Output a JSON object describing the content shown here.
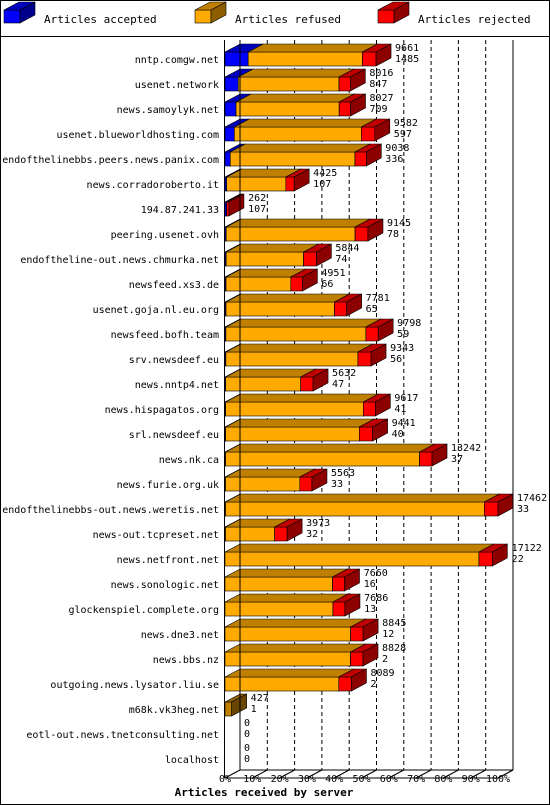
{
  "chart_data": {
    "type": "bar",
    "orientation": "horizontal",
    "stacked": true,
    "legend_position": "top",
    "series": [
      {
        "name": "Articles accepted",
        "color": "#0000ff"
      },
      {
        "name": "Articles refused",
        "color": "#ffaa00"
      },
      {
        "name": "Articles rejected",
        "color": "#ff0000"
      }
    ],
    "xlabel": "Articles received by server",
    "xlim": [
      0,
      100
    ],
    "x_ticks": [
      "0%",
      "10%",
      "20%",
      "30%",
      "40%",
      "50%",
      "60%",
      "70%",
      "80%",
      "90%",
      "100%"
    ],
    "grid": "vertical dashed",
    "max_total": 17462,
    "rows": [
      {
        "server": "nntp.comgw.net",
        "total": 9661,
        "accepted": 1485,
        "label_total": "9661",
        "label_accepted": "1485"
      },
      {
        "server": "usenet.network",
        "total": 8016,
        "accepted": 847,
        "label_total": "8016",
        "label_accepted": "847"
      },
      {
        "server": "news.samoylyk.net",
        "total": 8027,
        "accepted": 709,
        "label_total": "8027",
        "label_accepted": "709"
      },
      {
        "server": "usenet.blueworldhosting.com",
        "total": 9582,
        "accepted": 597,
        "label_total": "9582",
        "label_accepted": "597"
      },
      {
        "server": "endofthelinebbs.peers.news.panix.com",
        "total": 9038,
        "accepted": 336,
        "label_total": "9038",
        "label_accepted": "336"
      },
      {
        "server": "news.corradoroberto.it",
        "total": 4425,
        "accepted": 107,
        "label_total": "4425",
        "label_accepted": "107"
      },
      {
        "server": "194.87.241.33",
        "total": 262,
        "accepted": 107,
        "label_total": "262",
        "label_accepted": "107"
      },
      {
        "server": "peering.usenet.ovh",
        "total": 9145,
        "accepted": 78,
        "label_total": "9145",
        "label_accepted": "78"
      },
      {
        "server": "endoftheline-out.news.chmurka.net",
        "total": 5844,
        "accepted": 74,
        "label_total": "5844",
        "label_accepted": "74"
      },
      {
        "server": "newsfeed.xs3.de",
        "total": 4951,
        "accepted": 66,
        "label_total": "4951",
        "label_accepted": "66"
      },
      {
        "server": "usenet.goja.nl.eu.org",
        "total": 7781,
        "accepted": 65,
        "label_total": "7781",
        "label_accepted": "65"
      },
      {
        "server": "newsfeed.bofh.team",
        "total": 9798,
        "accepted": 59,
        "label_total": "9798",
        "label_accepted": "59"
      },
      {
        "server": "srv.newsdeef.eu",
        "total": 9343,
        "accepted": 56,
        "label_total": "9343",
        "label_accepted": "56"
      },
      {
        "server": "news.nntp4.net",
        "total": 5632,
        "accepted": 47,
        "label_total": "5632",
        "label_accepted": "47"
      },
      {
        "server": "news.hispagatos.org",
        "total": 9617,
        "accepted": 41,
        "label_total": "9617",
        "label_accepted": "41"
      },
      {
        "server": "srl.newsdeef.eu",
        "total": 9441,
        "accepted": 40,
        "label_total": "9441",
        "label_accepted": "40"
      },
      {
        "server": "news.nk.ca",
        "total": 13242,
        "accepted": 37,
        "label_total": "13242",
        "label_accepted": "37"
      },
      {
        "server": "news.furie.org.uk",
        "total": 5563,
        "accepted": 33,
        "label_total": "5563",
        "label_accepted": "33"
      },
      {
        "server": "endofthelinebbs-out.news.weretis.net",
        "total": 17462,
        "accepted": 33,
        "label_total": "17462",
        "label_accepted": "33"
      },
      {
        "server": "news-out.tcpreset.net",
        "total": 3973,
        "accepted": 32,
        "label_total": "3973",
        "label_accepted": "32"
      },
      {
        "server": "news.netfront.net",
        "total": 17122,
        "accepted": 22,
        "label_total": "17122",
        "label_accepted": "22"
      },
      {
        "server": "news.sonologic.net",
        "total": 7660,
        "accepted": 16,
        "label_total": "7660",
        "label_accepted": "16"
      },
      {
        "server": "glockenspiel.complete.org",
        "total": 7686,
        "accepted": 13,
        "label_total": "7686",
        "label_accepted": "13"
      },
      {
        "server": "news.dne3.net",
        "total": 8845,
        "accepted": 12,
        "label_total": "8845",
        "label_accepted": "12"
      },
      {
        "server": "news.bbs.nz",
        "total": 8828,
        "accepted": 2,
        "label_total": "8828",
        "label_accepted": "2"
      },
      {
        "server": "outgoing.news.lysator.liu.se",
        "total": 8089,
        "accepted": 2,
        "label_total": "8089",
        "label_accepted": "2"
      },
      {
        "server": "m68k.vk3heg.net",
        "total": 427,
        "accepted": 1,
        "label_total": "427",
        "label_accepted": "1"
      },
      {
        "server": "eotl-out.news.tnetconsulting.net",
        "total": 0,
        "accepted": 0,
        "label_total": "0",
        "label_accepted": "0"
      },
      {
        "server": "localhost",
        "total": 0,
        "accepted": 0,
        "label_total": "0",
        "label_accepted": "0"
      }
    ],
    "rejected_fraction": [
      0.09,
      0.09,
      0.09,
      0.09,
      0.08,
      0.12,
      0.55,
      0.09,
      0.14,
      0.15,
      0.1,
      0.08,
      0.09,
      0.14,
      0.08,
      0.09,
      0.06,
      0.14,
      0.05,
      0.2,
      0.05,
      0.1,
      0.1,
      0.09,
      0.09,
      0.1,
      0.0,
      0.0,
      0.0
    ],
    "rejected_visible": [
      true,
      true,
      true,
      true,
      true,
      true,
      true,
      true,
      true,
      true,
      true,
      true,
      true,
      true,
      true,
      true,
      true,
      true,
      true,
      true,
      true,
      true,
      true,
      true,
      true,
      true,
      false,
      false,
      false
    ],
    "dark_refused_bar": [
      false,
      false,
      false,
      false,
      false,
      false,
      false,
      false,
      false,
      false,
      false,
      false,
      false,
      false,
      false,
      false,
      false,
      false,
      false,
      false,
      false,
      false,
      false,
      false,
      false,
      false,
      true,
      false,
      false
    ]
  }
}
